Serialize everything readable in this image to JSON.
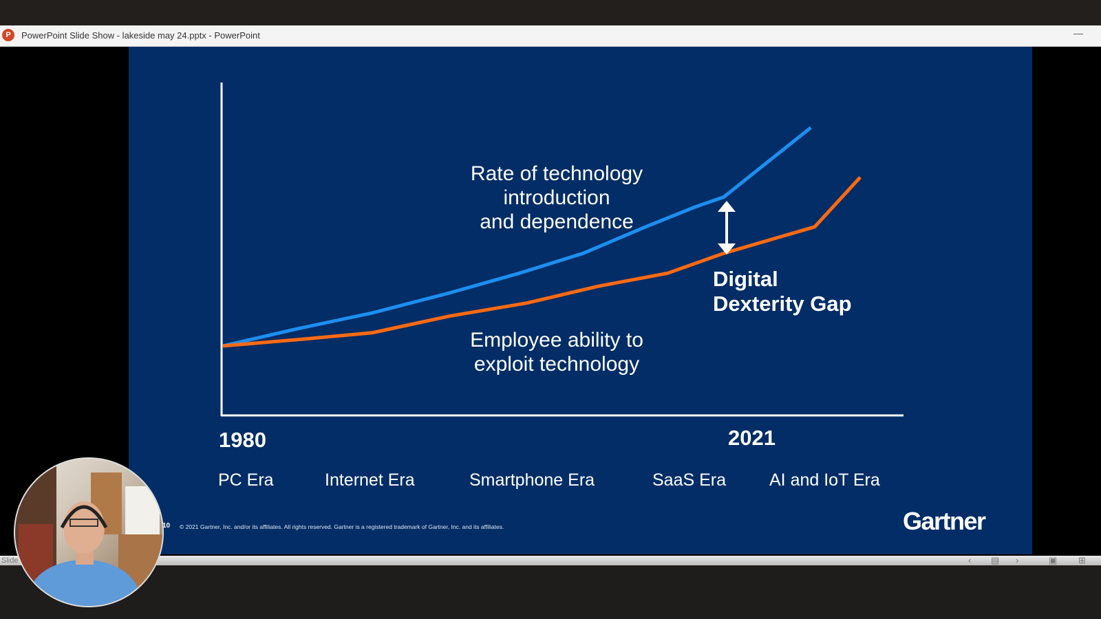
{
  "window": {
    "title": "PowerPoint Slide Show  -  lakeside may 24.pptx - PowerPoint",
    "app_icon": "P",
    "minimize": "—"
  },
  "slide": {
    "label_blue": [
      "Rate of technology",
      "introduction",
      "and dependence"
    ],
    "label_orange": [
      "Employee ability to",
      "exploit technology"
    ],
    "gap_label": [
      "Digital",
      "Dexterity Gap"
    ],
    "year_start": "1980",
    "year_end": "2021",
    "eras": [
      "PC Era",
      "Internet Era",
      "Smartphone Era",
      "SaaS Era",
      "AI and IoT Era"
    ],
    "slide_number": "10",
    "footer": "© 2021 Gartner, Inc. and/or its affiliates. All rights reserved. Gartner is a registered trademark of Gartner, Inc. and its affiliates.",
    "logo": "Gartner"
  },
  "status": {
    "left": "Slide",
    "icons": [
      "previous-icon",
      "slide-sorter-icon",
      "next-icon",
      "reading-view-icon",
      "grid-view-icon"
    ]
  },
  "colors": {
    "slide_bg": "#022d66",
    "blue": "#1c8ff0",
    "orange": "#ff6a12"
  },
  "chart_data": {
    "type": "line",
    "xlim": [
      1980,
      2030
    ],
    "ylim": [
      0,
      100
    ],
    "x_ticks": [
      "1980",
      "2021"
    ],
    "grid": false,
    "series": [
      {
        "name": "Rate of technology introduction and dependence",
        "color": "#1c8ff0",
        "x": [
          1980,
          1985.5,
          1991.5,
          1997.4,
          2002.8,
          2007.7,
          2012.5,
          2016.3,
          2018.5,
          2025.2
        ],
        "y": [
          21,
          26,
          31,
          37,
          43,
          49,
          57,
          63,
          66,
          87
        ]
      },
      {
        "name": "Employee ability to exploit technology",
        "color": "#ff6a12",
        "x": [
          1980,
          1986,
          1991.5,
          1997.4,
          2003.4,
          2008.8,
          2014.2,
          2018.5,
          2025.5,
          2029
        ],
        "y": [
          21,
          23,
          25,
          30,
          34,
          39,
          43,
          49,
          57,
          72
        ]
      }
    ],
    "annotation": "Digital Dexterity Gap"
  }
}
